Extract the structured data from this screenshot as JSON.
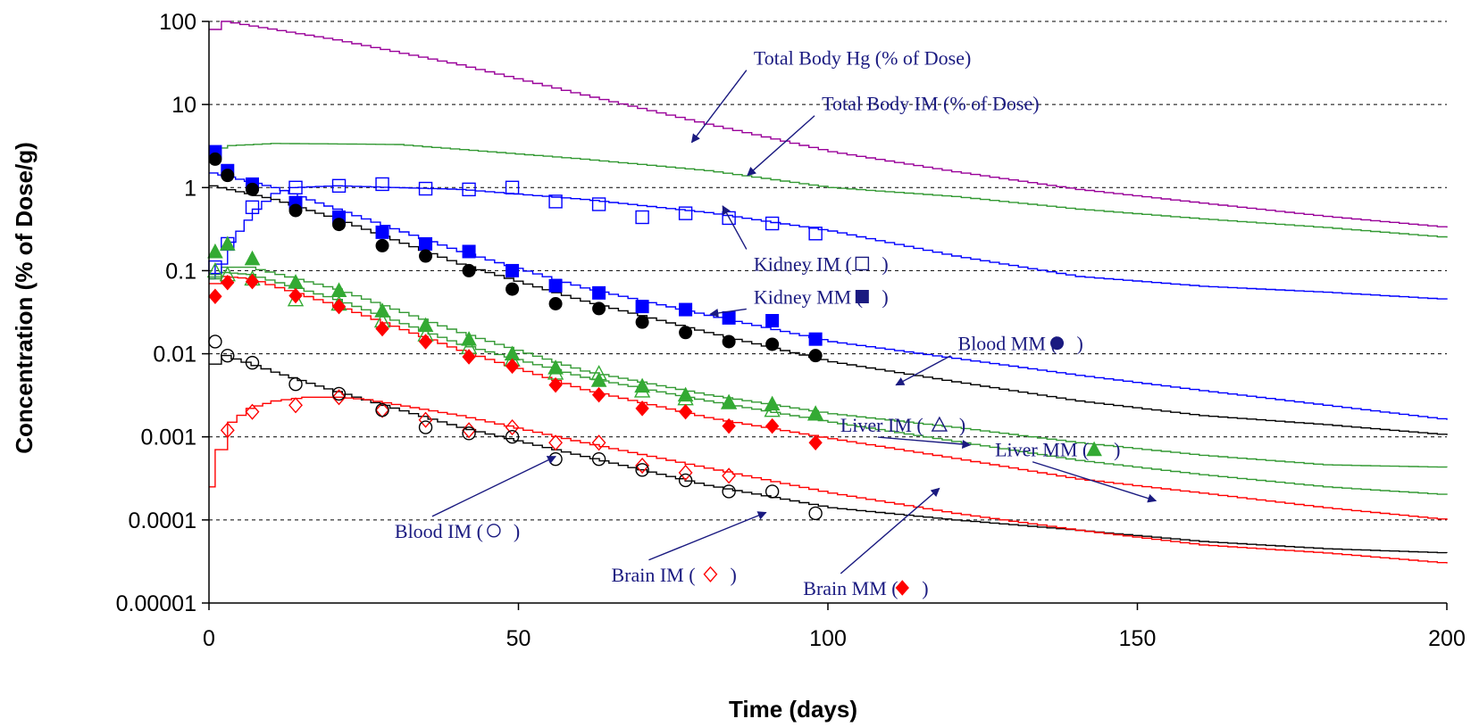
{
  "chart_data": {
    "type": "scatter",
    "xlabel": "Time (days)",
    "ylabel": "Concentration (% of Dose/g)",
    "xlim": [
      0,
      200
    ],
    "ylim": [
      1e-05,
      100
    ],
    "yscale": "log",
    "x_ticks": [
      "0",
      "50",
      "100",
      "150",
      "200"
    ],
    "y_ticks": [
      "0.00001",
      "0.0001",
      "0.001",
      "0.01",
      "0.1",
      "1",
      "10",
      "100"
    ],
    "y_tick_values": [
      1e-05,
      0.0001,
      0.001,
      0.01,
      0.1,
      1,
      10,
      100
    ],
    "grid": "horizontal dashed",
    "colors": {
      "purple": "#990099",
      "green": "#339933",
      "blue": "#0000ff",
      "black": "#000000",
      "red": "#ff0000",
      "annotation": "#1a1a80",
      "liver_marker": "#33aa33"
    },
    "annotations": [
      {
        "text": "Total Body Hg (% of Dose)",
        "x": 88,
        "y": 30,
        "arrow_to": [
          78,
          3.5
        ]
      },
      {
        "text": "Total Body IM (% of Dose)",
        "x": 99,
        "y": 8.5,
        "arrow_to": [
          87,
          1.4
        ]
      },
      {
        "text": "Kidney IM (",
        "x": 88,
        "y": 0.1,
        "marker": "open-square",
        "after": ")",
        "arrow_to": [
          83,
          0.6
        ]
      },
      {
        "text": "Kidney MM (",
        "x": 88,
        "y": 0.04,
        "marker": "filled-square",
        "after": ")",
        "arrow_to": [
          81,
          0.03
        ]
      },
      {
        "text": "Blood MM (",
        "x": 121,
        "y": 0.011,
        "marker": "filled-circle",
        "after": ")",
        "arrow_to": [
          111,
          0.0042
        ]
      },
      {
        "text": "Liver IM (",
        "x": 102,
        "y": 0.00115,
        "marker": "open-triangle",
        "after": ")",
        "arrow_to": [
          123,
          0.0008
        ]
      },
      {
        "text": "Liver MM (",
        "x": 127,
        "y": 0.00058,
        "marker": "filled-triangle",
        "after": ")",
        "arrow_to": [
          153,
          0.00017
        ]
      },
      {
        "text": "Blood IM (",
        "x": 30,
        "y": 6.1e-05,
        "marker": "open-circle",
        "after": ")",
        "arrow_to": [
          56,
          0.00058
        ]
      },
      {
        "text": "Brain IM (",
        "x": 65,
        "y": 1.82e-05,
        "marker": "open-diamond",
        "after": ")",
        "arrow_to": [
          90,
          0.000123
        ]
      },
      {
        "text": "Brain MM (",
        "x": 96,
        "y": 1.25e-05,
        "marker": "filled-diamond",
        "after": ")",
        "arrow_to": [
          118,
          0.00024
        ]
      }
    ],
    "series": [
      {
        "kind": "line",
        "color": "#990099",
        "x": [
          0,
          2,
          20,
          40,
          60,
          80,
          100,
          120,
          140,
          160,
          180,
          200
        ],
        "y": [
          80,
          100,
          60,
          30,
          13,
          5.8,
          2.7,
          1.55,
          0.95,
          0.65,
          0.45,
          0.33
        ]
      },
      {
        "kind": "line",
        "color": "#339933",
        "x": [
          0,
          3,
          10,
          30,
          60,
          80,
          100,
          120,
          140,
          160,
          180,
          200
        ],
        "y": [
          2.8,
          3.2,
          3.4,
          3.3,
          2.2,
          1.6,
          1.0,
          0.78,
          0.55,
          0.42,
          0.33,
          0.25
        ]
      },
      {
        "kind": "line",
        "color": "#0000ff",
        "x": [
          0,
          1,
          3,
          7,
          10,
          13,
          20,
          40,
          60,
          80,
          100,
          120,
          140,
          160,
          180,
          200
        ],
        "y": [
          0.08,
          0.12,
          0.22,
          0.55,
          0.85,
          1.0,
          1.05,
          0.95,
          0.72,
          0.5,
          0.3,
          0.15,
          0.085,
          0.065,
          0.055,
          0.045
        ]
      },
      {
        "kind": "line",
        "color": "#0000ff",
        "x": [
          0,
          10,
          20,
          40,
          60,
          80,
          100,
          120,
          140,
          160,
          180,
          200
        ],
        "y": [
          1.5,
          1.0,
          0.55,
          0.17,
          0.062,
          0.029,
          0.014,
          0.0088,
          0.0055,
          0.0036,
          0.0024,
          0.0016
        ]
      },
      {
        "kind": "line",
        "color": "#000000",
        "x": [
          0,
          10,
          20,
          40,
          60,
          80,
          100,
          120,
          140,
          160,
          180,
          200
        ],
        "y": [
          1.05,
          0.72,
          0.42,
          0.12,
          0.043,
          0.018,
          0.008,
          0.0046,
          0.0027,
          0.0018,
          0.0014,
          0.00105
        ]
      },
      {
        "kind": "line",
        "color": "#339933",
        "x": [
          0,
          2,
          6,
          20,
          40,
          60,
          80,
          100,
          120,
          140,
          160,
          180,
          200
        ],
        "y": [
          0.09,
          0.11,
          0.11,
          0.06,
          0.018,
          0.0062,
          0.0032,
          0.0019,
          0.0013,
          0.00085,
          0.0006,
          0.00046,
          0.00043
        ]
      },
      {
        "kind": "line",
        "color": "#339933",
        "x": [
          0,
          2,
          6,
          20,
          40,
          60,
          80,
          100,
          120,
          140,
          160,
          180,
          200
        ],
        "y": [
          0.08,
          0.095,
          0.09,
          0.045,
          0.013,
          0.0052,
          0.0027,
          0.0015,
          0.00088,
          0.00052,
          0.00035,
          0.00025,
          0.0002
        ]
      },
      {
        "kind": "line",
        "color": "#ff0000",
        "x": [
          0,
          2,
          6,
          20,
          40,
          60,
          80,
          100,
          120,
          140,
          160,
          180,
          200
        ],
        "y": [
          0.07,
          0.085,
          0.08,
          0.038,
          0.011,
          0.0037,
          0.0017,
          0.00095,
          0.00055,
          0.00031,
          0.00021,
          0.00014,
          0.0001
        ]
      },
      {
        "kind": "line",
        "color": "#000000",
        "x": [
          0,
          2,
          10,
          20,
          40,
          60,
          80,
          100,
          120,
          140,
          160,
          180,
          200
        ],
        "y": [
          0.0075,
          0.0095,
          0.006,
          0.0035,
          0.0013,
          0.00058,
          0.00026,
          0.00014,
          0.0001,
          7.5e-05,
          5.5e-05,
          4.5e-05,
          4e-05
        ]
      },
      {
        "kind": "line",
        "color": "#ff0000",
        "x": [
          0,
          1,
          3,
          6,
          10,
          15,
          20,
          25,
          40,
          60,
          80,
          100,
          120,
          140,
          160,
          180,
          200
        ],
        "y": [
          0.00025,
          0.0007,
          0.0015,
          0.0022,
          0.0027,
          0.003,
          0.003,
          0.0028,
          0.0018,
          0.00085,
          0.00042,
          0.00021,
          0.00012,
          7.5e-05,
          5e-05,
          4e-05,
          3e-05
        ]
      },
      {
        "kind": "points",
        "marker": "filled-square",
        "color": "#0000ff",
        "x": [
          1,
          3,
          7,
          14,
          21,
          28,
          35,
          42,
          49,
          56,
          63,
          70,
          77,
          84,
          91,
          98
        ],
        "y": [
          2.7,
          1.6,
          1.1,
          0.66,
          0.44,
          0.29,
          0.21,
          0.17,
          0.1,
          0.066,
          0.054,
          0.037,
          0.034,
          0.027,
          0.025,
          0.015
        ]
      },
      {
        "kind": "points",
        "marker": "open-square",
        "color": "#0000ff",
        "x": [
          1,
          3,
          7,
          14,
          21,
          28,
          35,
          42,
          49,
          56,
          63,
          70,
          77,
          84,
          91,
          98
        ],
        "y": [
          0.11,
          0.21,
          0.58,
          1.0,
          1.05,
          1.1,
          0.97,
          0.95,
          1.0,
          0.68,
          0.63,
          0.44,
          0.49,
          0.43,
          0.37,
          0.28
        ]
      },
      {
        "kind": "points",
        "marker": "filled-circle",
        "color": "#000000",
        "x": [
          1,
          3,
          7,
          14,
          21,
          28,
          35,
          42,
          49,
          56,
          63,
          70,
          77,
          84,
          91,
          98
        ],
        "y": [
          2.2,
          1.4,
          0.95,
          0.53,
          0.36,
          0.2,
          0.15,
          0.1,
          0.06,
          0.04,
          0.035,
          0.024,
          0.018,
          0.014,
          0.013,
          0.0095
        ]
      },
      {
        "kind": "points",
        "marker": "filled-triangle",
        "color": "#33aa33",
        "x": [
          1,
          3,
          7,
          14,
          21,
          28,
          35,
          42,
          49,
          56,
          63,
          70,
          77,
          84,
          91,
          98
        ],
        "y": [
          0.17,
          0.21,
          0.14,
          0.073,
          0.058,
          0.033,
          0.022,
          0.015,
          0.01,
          0.0068,
          0.0048,
          0.0041,
          0.0032,
          0.0026,
          0.0025,
          0.0019
        ]
      },
      {
        "kind": "points",
        "marker": "open-triangle",
        "color": "#33aa33",
        "x": [
          1,
          3,
          7,
          14,
          21,
          28,
          35,
          42,
          49,
          56,
          63,
          70,
          77,
          84,
          91,
          98
        ],
        "y": [
          0.1,
          0.09,
          0.08,
          0.045,
          0.04,
          0.025,
          0.017,
          0.012,
          0.0085,
          0.0059,
          0.0058,
          0.0036,
          0.0029,
          0.0026,
          0.0021,
          0.0019
        ]
      },
      {
        "kind": "points",
        "marker": "filled-diamond",
        "color": "#ff0000",
        "x": [
          1,
          3,
          7,
          14,
          21,
          28,
          35,
          42,
          49,
          56,
          63,
          70,
          77,
          84,
          91,
          98
        ],
        "y": [
          0.049,
          0.072,
          0.074,
          0.05,
          0.037,
          0.02,
          0.014,
          0.0092,
          0.0071,
          0.0042,
          0.0032,
          0.0022,
          0.002,
          0.00135,
          0.00135,
          0.00085
        ]
      },
      {
        "kind": "points",
        "marker": "open-diamond",
        "color": "#ff0000",
        "x": [
          3,
          7,
          14,
          21,
          28,
          35,
          42,
          49,
          56,
          63,
          70,
          77,
          84
        ],
        "y": [
          0.0012,
          0.002,
          0.0024,
          0.003,
          0.0021,
          0.0016,
          0.0012,
          0.0013,
          0.00085,
          0.00085,
          0.00045,
          0.00037,
          0.00034
        ]
      },
      {
        "kind": "points",
        "marker": "open-circle",
        "color": "#000000",
        "x": [
          1,
          3,
          7,
          14,
          21,
          28,
          35,
          42,
          49,
          56,
          63,
          70,
          77,
          84,
          91,
          98
        ],
        "y": [
          0.014,
          0.0095,
          0.0078,
          0.0043,
          0.0033,
          0.0021,
          0.0013,
          0.0011,
          0.001,
          0.00054,
          0.00054,
          0.0004,
          0.0003,
          0.00022,
          0.00022,
          0.00012
        ]
      }
    ]
  }
}
